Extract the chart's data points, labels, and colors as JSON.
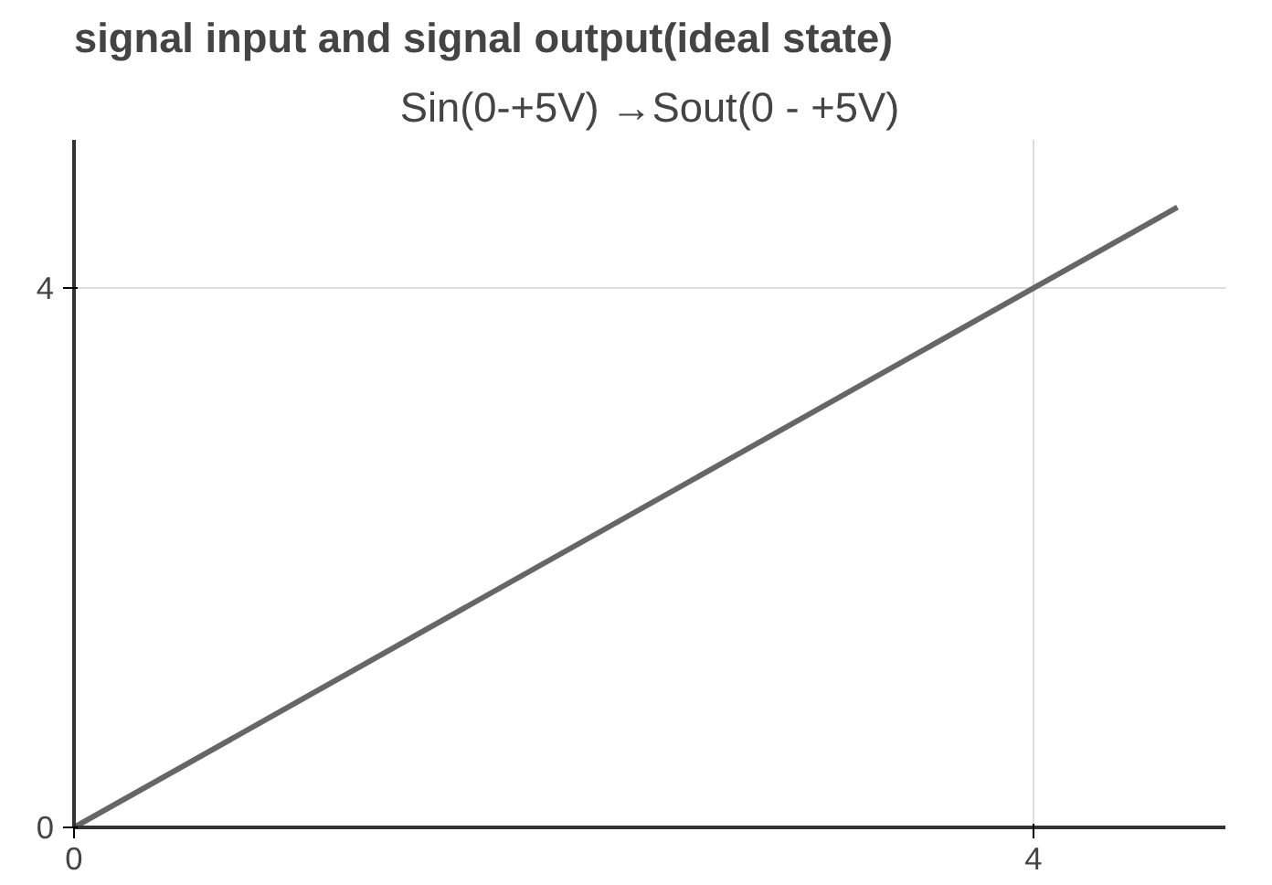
{
  "chart_data": {
    "type": "line",
    "title": "signal input and signal output(ideal state)",
    "subtitle": "Sin(0-+5V) →Sout(0 - +5V)",
    "x": [
      0,
      4,
      4.6
    ],
    "series": [
      {
        "color": "#666666",
        "values": [
          0,
          4,
          4.6
        ]
      }
    ],
    "xlim": [
      0,
      4.8
    ],
    "ylim": [
      0,
      5.1
    ],
    "xticks": [
      0,
      4
    ],
    "yticks": [
      0,
      4
    ],
    "grid": true,
    "marker": "none",
    "line_style": "solid"
  }
}
